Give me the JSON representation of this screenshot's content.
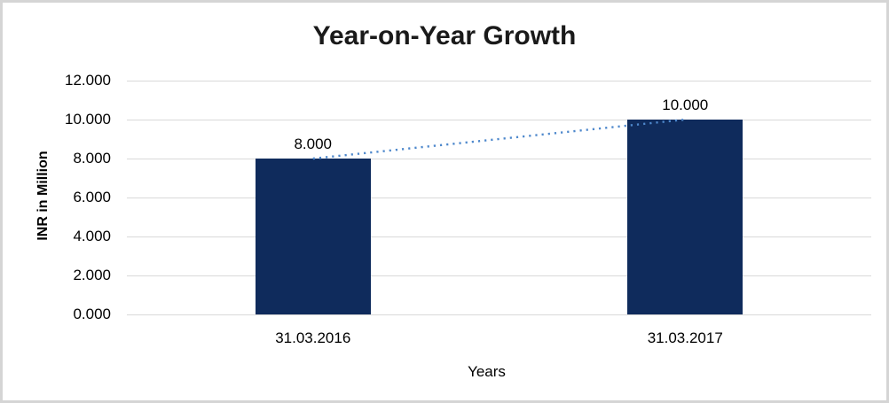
{
  "chart_data": {
    "type": "bar",
    "title": "Year-on-Year Growth",
    "categories": [
      "31.03.2016",
      "31.03.2017"
    ],
    "values": [
      8,
      10
    ],
    "value_labels": [
      "8.000",
      "10.000"
    ],
    "xlabel": "Years",
    "ylabel": "INR in Million",
    "ylim": [
      0,
      12
    ],
    "ytick_step": 2,
    "ytick_values": [
      0,
      2,
      4,
      6,
      8,
      10,
      12
    ],
    "ytick_labels": [
      "0.000",
      "2.000",
      "4.000",
      "6.000",
      "8.000",
      "10.000",
      "12.000"
    ],
    "grid": true,
    "legend": "none",
    "trendline": {
      "style": "dotted",
      "connects": [
        "8.000",
        "10.000"
      ]
    },
    "colors": {
      "bar": "#0F2B5C",
      "trendline": "#4E88CC",
      "gridline": "#D9D9D9",
      "frame_border": "#D5D5D5",
      "title_text": "#1A1A1A",
      "axis_text": "#000000",
      "background": "#FFFFFF"
    }
  }
}
